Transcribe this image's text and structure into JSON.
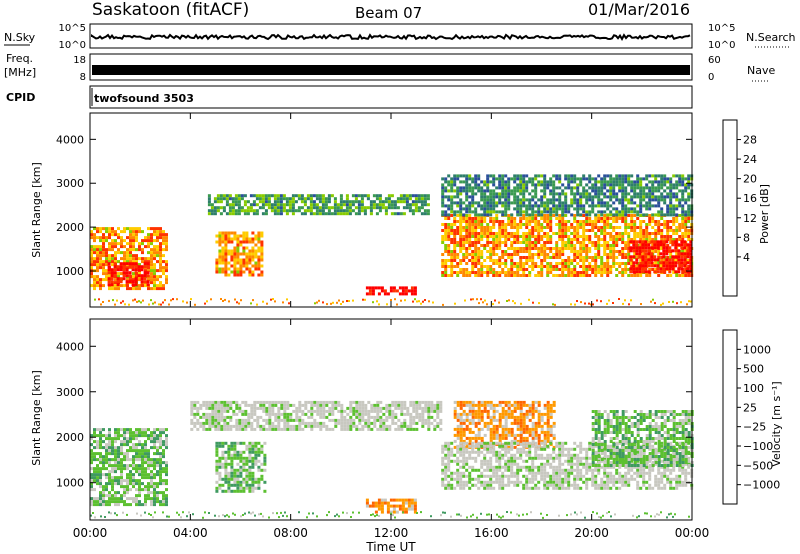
{
  "header": {
    "station": "Saskatoon (fitACF)",
    "beam": "Beam 07",
    "date": "01/Mar/2016"
  },
  "strips": {
    "nsky": {
      "label": "N.Sky",
      "ticks": [
        "10^5",
        "10^0"
      ],
      "right_label": "N.Search",
      "right_ticks": [
        "10^5",
        "10^0"
      ]
    },
    "freq": {
      "label1": "Freq.",
      "label2": "[MHz]",
      "ticks": [
        "18",
        "8"
      ],
      "right_label": "Nave",
      "right_ticks": [
        "60",
        "0"
      ]
    },
    "cpid": {
      "label": "CPID",
      "program": "twofsound 3503"
    }
  },
  "power_scale": {
    "label": "Power [dB]",
    "ticks": [
      "28",
      "24",
      "20",
      "16",
      "12",
      "8",
      "4"
    ],
    "colors": [
      "#ff0000",
      "#ff3300",
      "#ff8800",
      "#ffcc00",
      "#88cc00",
      "#3a9a50",
      "#2e7f6a",
      "#2a4f9a",
      "#0000ff"
    ]
  },
  "velocity_scale": {
    "label": "Velocity [m s⁻¹]",
    "ticks": [
      "1000",
      "500",
      "100",
      "25",
      "−25",
      "−100",
      "−500",
      "−1000"
    ],
    "colors": [
      "#2233cc",
      "#2f6ea0",
      "#3f9a60",
      "#5cc030",
      "#c8c8c0",
      "#c8c8c0",
      "#ff9900",
      "#ff6600",
      "#ff0000"
    ]
  },
  "chart_data": [
    {
      "type": "heatmap",
      "title": "",
      "xlabel": "Time UT",
      "ylabel": "Slant Range [km]",
      "x_ticks": [
        "00:00",
        "04:00",
        "08:00",
        "12:00",
        "16:00",
        "20:00",
        "00:00"
      ],
      "y_ticks": [
        "1000",
        "2000",
        "3000",
        "4000"
      ],
      "xlim": [
        0,
        24
      ],
      "ylim": [
        180,
        4600
      ],
      "quantity": "Power [dB]",
      "regions": [
        {
          "t": [
            0.0,
            3.0
          ],
          "r": [
            600,
            2000
          ],
          "level": 20
        },
        {
          "t": [
            0.7,
            2.3
          ],
          "r": [
            700,
            1200
          ],
          "level": 28
        },
        {
          "t": [
            5.0,
            6.8
          ],
          "r": [
            900,
            1900
          ],
          "level": 20
        },
        {
          "t": [
            4.7,
            13.5
          ],
          "r": [
            2300,
            2750
          ],
          "level": 10
        },
        {
          "t": [
            11.0,
            13.0
          ],
          "r": [
            450,
            650
          ],
          "level": 30
        },
        {
          "t": [
            14.0,
            24.0
          ],
          "r": [
            900,
            2300
          ],
          "level": 20
        },
        {
          "t": [
            21.5,
            24.0
          ],
          "r": [
            1000,
            1700
          ],
          "level": 28
        },
        {
          "t": [
            14.0,
            24.0
          ],
          "r": [
            2300,
            3200
          ],
          "level": 8
        }
      ]
    },
    {
      "type": "heatmap",
      "title": "",
      "xlabel": "Time UT",
      "ylabel": "Slant Range [km]",
      "x_ticks": [
        "00:00",
        "04:00",
        "08:00",
        "12:00",
        "16:00",
        "20:00",
        "00:00"
      ],
      "y_ticks": [
        "1000",
        "2000",
        "3000",
        "4000"
      ],
      "xlim": [
        0,
        24
      ],
      "ylim": [
        180,
        4600
      ],
      "quantity": "Velocity [m s⁻¹]",
      "regions": [
        {
          "t": [
            0.0,
            3.0
          ],
          "r": [
            500,
            2200
          ],
          "level": 100
        },
        {
          "t": [
            4.0,
            14.0
          ],
          "r": [
            2200,
            2800
          ],
          "level": 0
        },
        {
          "t": [
            5.0,
            7.0
          ],
          "r": [
            800,
            1900
          ],
          "level": 100
        },
        {
          "t": [
            11.0,
            13.0
          ],
          "r": [
            350,
            650
          ],
          "level": -300
        },
        {
          "t": [
            14.5,
            18.5
          ],
          "r": [
            1800,
            2800
          ],
          "level": -300
        },
        {
          "t": [
            14.0,
            24.0
          ],
          "r": [
            900,
            1900
          ],
          "level": 0
        },
        {
          "t": [
            20.0,
            24.0
          ],
          "r": [
            1400,
            2600
          ],
          "level": 100
        }
      ]
    }
  ]
}
